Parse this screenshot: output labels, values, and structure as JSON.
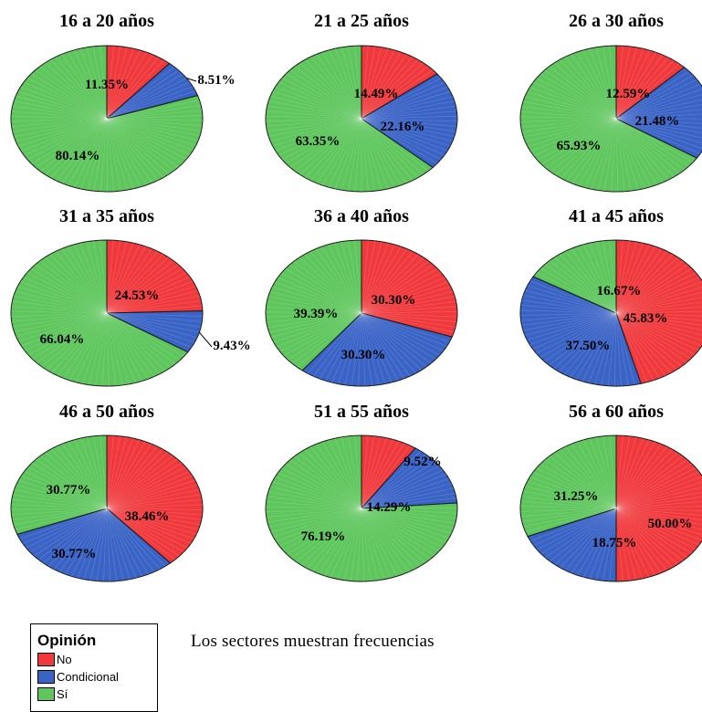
{
  "chart_data": [
    {
      "type": "pie",
      "title": "16 a 20 años",
      "categories": [
        "No",
        "Condicional",
        "Sí"
      ],
      "values": [
        11.35,
        8.51,
        80.14
      ],
      "labels": [
        "11.35%",
        "8.51%",
        "80.14%"
      ]
    },
    {
      "type": "pie",
      "title": "21 a 25 años",
      "categories": [
        "No",
        "Condicional",
        "Sí"
      ],
      "values": [
        14.49,
        22.16,
        63.35
      ],
      "labels": [
        "14.49%",
        "22.16%",
        "63.35%"
      ]
    },
    {
      "type": "pie",
      "title": "26 a 30 años",
      "categories": [
        "No",
        "Condicional",
        "Sí"
      ],
      "values": [
        12.59,
        21.48,
        65.93
      ],
      "labels": [
        "12.59%",
        "21.48%",
        "65.93%"
      ]
    },
    {
      "type": "pie",
      "title": "31 a 35 años",
      "categories": [
        "No",
        "Condicional",
        "Sí"
      ],
      "values": [
        24.53,
        9.43,
        66.04
      ],
      "labels": [
        "24.53%",
        "9.43%",
        "66.04%"
      ]
    },
    {
      "type": "pie",
      "title": "36 a 40 años",
      "categories": [
        "No",
        "Condicional",
        "Sí"
      ],
      "values": [
        30.3,
        30.3,
        39.39
      ],
      "labels": [
        "30.30%",
        "30.30%",
        "39.39%"
      ]
    },
    {
      "type": "pie",
      "title": "41 a 45 años",
      "categories": [
        "No",
        "Condicional",
        "Sí"
      ],
      "values": [
        45.83,
        37.5,
        16.67
      ],
      "labels": [
        "45.83%",
        "37.50%",
        "16.67%"
      ]
    },
    {
      "type": "pie",
      "title": "46 a 50 años",
      "categories": [
        "No",
        "Condicional",
        "Sí"
      ],
      "values": [
        38.46,
        30.77,
        30.77
      ],
      "labels": [
        "38.46%",
        "30.77%",
        "30.77%"
      ]
    },
    {
      "type": "pie",
      "title": "51 a 55 años",
      "categories": [
        "No",
        "Condicional",
        "Sí"
      ],
      "values": [
        9.52,
        14.29,
        76.19
      ],
      "labels": [
        "9.52%",
        "14.29%",
        "76.19%"
      ]
    },
    {
      "type": "pie",
      "title": "56 a 60 años",
      "categories": [
        "No",
        "Condicional",
        "Sí"
      ],
      "values": [
        50.0,
        18.75,
        31.25
      ],
      "labels": [
        "50.00%",
        "18.75%",
        "31.25%"
      ]
    }
  ],
  "colors": {
    "No": "#f0393c",
    "Condicional": "#3a63c6",
    "Sí": "#5ec65c"
  },
  "legend": {
    "title": "Opinión",
    "items": [
      {
        "label": "No",
        "color": "#f0393c"
      },
      {
        "label": "Condicional",
        "color": "#3a63c6"
      },
      {
        "label": "Sí",
        "color": "#5ec65c"
      }
    ]
  },
  "note": "Los sectores muestran frecuencias"
}
